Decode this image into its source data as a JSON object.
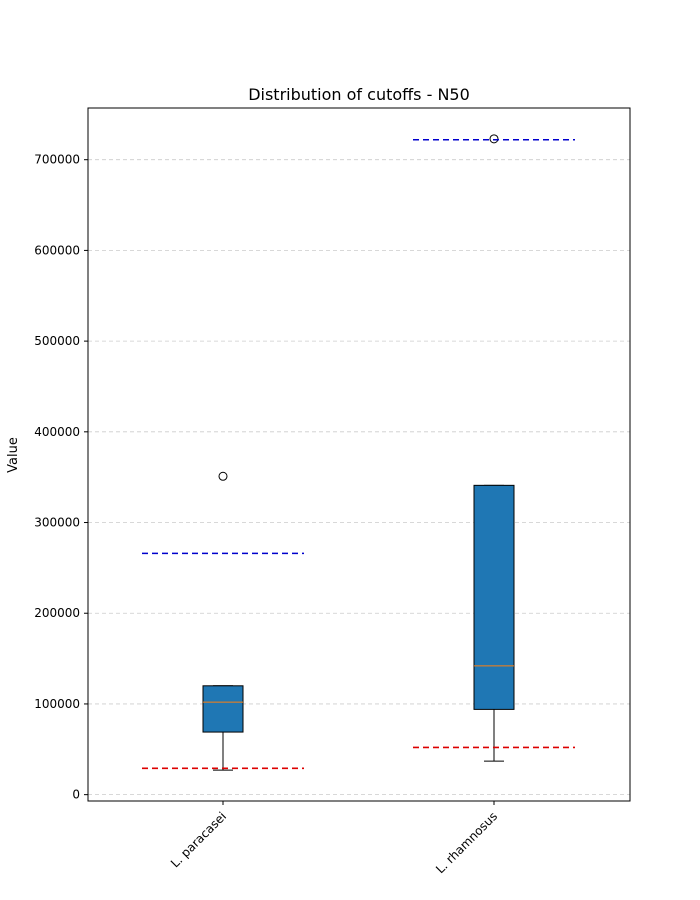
{
  "chart_data": {
    "type": "box",
    "title": "Distribution of cutoffs - N50",
    "xlabel": "",
    "ylabel": "Value",
    "ylim": [
      -7000,
      757000
    ],
    "yticks": [
      0,
      100000,
      200000,
      300000,
      400000,
      500000,
      600000,
      700000
    ],
    "ytick_labels": [
      "0",
      "100000",
      "200000",
      "300000",
      "400000",
      "500000",
      "600000",
      "700000"
    ],
    "categories": [
      "L. paracasei",
      "L. rhamnosus"
    ],
    "grid": "y-dashed",
    "box_color": "#1f77b4",
    "median_color": "#ff7f0e",
    "boxes": [
      {
        "name": "L. paracasei",
        "whisker_low": 27000,
        "q1": 69000,
        "median": 102000,
        "q3": 120000,
        "whisker_high": 120000,
        "outliers": [
          351000
        ]
      },
      {
        "name": "L. rhamnosus",
        "whisker_low": 37000,
        "q1": 94000,
        "median": 142000,
        "q3": 341000,
        "whisker_high": 341000,
        "outliers": [
          723000
        ]
      }
    ],
    "threshold_lines": [
      {
        "category": "L. paracasei",
        "upper": 266000,
        "lower": 29000
      },
      {
        "category": "L. rhamnosus",
        "upper": 722000,
        "lower": 52000
      }
    ],
    "upper_line_color": "#0000cc",
    "lower_line_color": "#dd0000"
  }
}
